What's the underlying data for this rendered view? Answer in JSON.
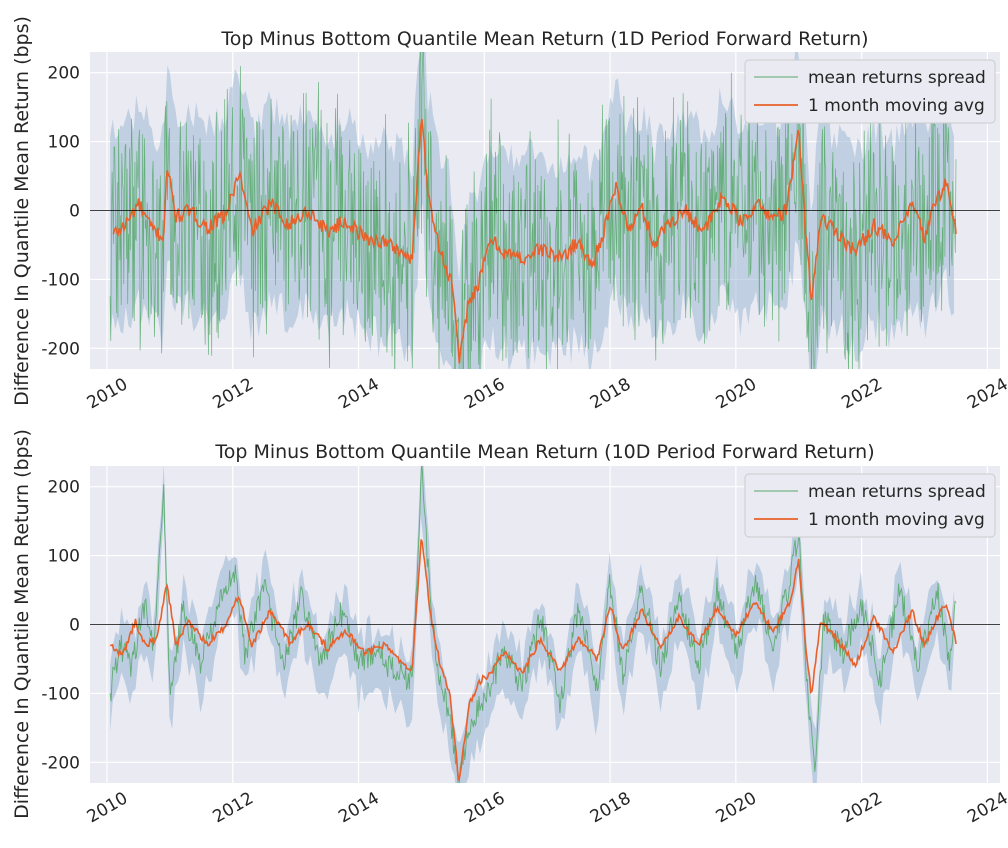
{
  "colors": {
    "plot_background": "#EAEAF2",
    "grid": "#FFFFFF",
    "spread_line": "#55A868",
    "spread_band": "#9DB9D6",
    "moving_avg": "#E8602A",
    "zero_line": "#000000"
  },
  "chart_data": [
    {
      "type": "line",
      "title": "Top Minus Bottom Quantile Mean Return (1D Period Forward Return)",
      "xlabel": "",
      "ylabel": "Difference In Quantile Mean Return (bps)",
      "x_range": [
        "2010-01",
        "2024-01"
      ],
      "x_ticks": [
        "2010",
        "2012",
        "2014",
        "2016",
        "2018",
        "2020",
        "2022",
        "2024"
      ],
      "ylim": [
        -230,
        230
      ],
      "y_ticks": [
        -200,
        -100,
        0,
        100,
        200
      ],
      "grid": true,
      "legend_position": "top-right",
      "zero_line": 0,
      "series": [
        {
          "name": "mean returns spread",
          "style": "noisy band",
          "typical_range": [
            -150,
            150
          ],
          "note_values": [
            [
              2010.1,
              0
            ],
            [
              2015.0,
              230
            ],
            [
              2015.6,
              -230
            ],
            [
              2021.0,
              150
            ]
          ]
        },
        {
          "name": "1 month moving avg",
          "points": [
            [
              2010.1,
              -35
            ],
            [
              2010.3,
              -20
            ],
            [
              2010.5,
              10
            ],
            [
              2010.7,
              -25
            ],
            [
              2010.9,
              -40
            ],
            [
              2010.95,
              65
            ],
            [
              2011.1,
              -10
            ],
            [
              2011.3,
              0
            ],
            [
              2011.6,
              -25
            ],
            [
              2011.9,
              -5
            ],
            [
              2012.1,
              55
            ],
            [
              2012.3,
              -30
            ],
            [
              2012.6,
              10
            ],
            [
              2012.9,
              -20
            ],
            [
              2013.2,
              0
            ],
            [
              2013.5,
              -30
            ],
            [
              2013.8,
              -15
            ],
            [
              2014.1,
              -40
            ],
            [
              2014.4,
              -45
            ],
            [
              2014.7,
              -60
            ],
            [
              2014.85,
              -75
            ],
            [
              2015.0,
              145
            ],
            [
              2015.1,
              30
            ],
            [
              2015.3,
              -60
            ],
            [
              2015.5,
              -110
            ],
            [
              2015.6,
              -225
            ],
            [
              2015.75,
              -130
            ],
            [
              2015.9,
              -110
            ],
            [
              2016.1,
              -40
            ],
            [
              2016.3,
              -60
            ],
            [
              2016.6,
              -70
            ],
            [
              2016.9,
              -55
            ],
            [
              2017.2,
              -70
            ],
            [
              2017.5,
              -45
            ],
            [
              2017.7,
              -80
            ],
            [
              2017.9,
              -30
            ],
            [
              2018.1,
              35
            ],
            [
              2018.3,
              -30
            ],
            [
              2018.5,
              5
            ],
            [
              2018.7,
              -50
            ],
            [
              2018.9,
              -20
            ],
            [
              2019.2,
              0
            ],
            [
              2019.5,
              -30
            ],
            [
              2019.8,
              20
            ],
            [
              2020.1,
              -20
            ],
            [
              2020.3,
              10
            ],
            [
              2020.6,
              -10
            ],
            [
              2020.8,
              0
            ],
            [
              2021.0,
              115
            ],
            [
              2021.1,
              -20
            ],
            [
              2021.2,
              -130
            ],
            [
              2021.35,
              -10
            ],
            [
              2021.6,
              -30
            ],
            [
              2021.9,
              -60
            ],
            [
              2022.2,
              -20
            ],
            [
              2022.5,
              -50
            ],
            [
              2022.8,
              10
            ],
            [
              2023.0,
              -40
            ],
            [
              2023.2,
              20
            ],
            [
              2023.35,
              40
            ],
            [
              2023.5,
              -30
            ]
          ]
        }
      ]
    },
    {
      "type": "line",
      "title": "Top Minus Bottom Quantile Mean Return (10D Period Forward Return)",
      "xlabel": "",
      "ylabel": "Difference In Quantile Mean Return (bps)",
      "x_range": [
        "2010-01",
        "2024-01"
      ],
      "x_ticks": [
        "2010",
        "2012",
        "2014",
        "2016",
        "2018",
        "2020",
        "2022",
        "2024"
      ],
      "ylim": [
        -230,
        230
      ],
      "y_ticks": [
        -200,
        -100,
        0,
        100,
        200
      ],
      "grid": true,
      "legend_position": "top-right",
      "zero_line": 0,
      "series": [
        {
          "name": "mean returns spread",
          "points": [
            [
              2010.05,
              -100
            ],
            [
              2010.2,
              -30
            ],
            [
              2010.4,
              -60
            ],
            [
              2010.6,
              30
            ],
            [
              2010.75,
              -40
            ],
            [
              2010.9,
              200
            ],
            [
              2011.0,
              -110
            ],
            [
              2011.2,
              20
            ],
            [
              2011.5,
              -60
            ],
            [
              2011.8,
              40
            ],
            [
              2012.05,
              75
            ],
            [
              2012.2,
              -50
            ],
            [
              2012.5,
              60
            ],
            [
              2012.8,
              -60
            ],
            [
              2013.1,
              40
            ],
            [
              2013.4,
              -60
            ],
            [
              2013.7,
              20
            ],
            [
              2014.0,
              -50
            ],
            [
              2014.3,
              -40
            ],
            [
              2014.6,
              -70
            ],
            [
              2014.85,
              -80
            ],
            [
              2015.0,
              225
            ],
            [
              2015.15,
              20
            ],
            [
              2015.3,
              -80
            ],
            [
              2015.45,
              -140
            ],
            [
              2015.6,
              -230
            ],
            [
              2015.75,
              -150
            ],
            [
              2016.0,
              -110
            ],
            [
              2016.3,
              -40
            ],
            [
              2016.6,
              -90
            ],
            [
              2016.9,
              10
            ],
            [
              2017.2,
              -110
            ],
            [
              2017.5,
              20
            ],
            [
              2017.8,
              -90
            ],
            [
              2018.0,
              60
            ],
            [
              2018.2,
              -70
            ],
            [
              2018.5,
              50
            ],
            [
              2018.8,
              -60
            ],
            [
              2019.1,
              40
            ],
            [
              2019.4,
              -60
            ],
            [
              2019.7,
              50
            ],
            [
              2020.0,
              -40
            ],
            [
              2020.3,
              60
            ],
            [
              2020.6,
              -30
            ],
            [
              2020.85,
              60
            ],
            [
              2021.0,
              135
            ],
            [
              2021.1,
              -40
            ],
            [
              2021.25,
              -220
            ],
            [
              2021.4,
              10
            ],
            [
              2021.7,
              -40
            ],
            [
              2022.0,
              30
            ],
            [
              2022.3,
              -80
            ],
            [
              2022.6,
              50
            ],
            [
              2022.9,
              -60
            ],
            [
              2023.2,
              50
            ],
            [
              2023.4,
              -50
            ],
            [
              2023.5,
              30
            ]
          ]
        },
        {
          "name": "1 month moving avg",
          "points": [
            [
              2010.05,
              -30
            ],
            [
              2010.25,
              -45
            ],
            [
              2010.45,
              5
            ],
            [
              2010.6,
              -30
            ],
            [
              2010.8,
              -20
            ],
            [
              2010.95,
              62
            ],
            [
              2011.1,
              -30
            ],
            [
              2011.3,
              5
            ],
            [
              2011.6,
              -30
            ],
            [
              2011.9,
              0
            ],
            [
              2012.1,
              45
            ],
            [
              2012.3,
              -30
            ],
            [
              2012.6,
              20
            ],
            [
              2012.9,
              -25
            ],
            [
              2013.2,
              0
            ],
            [
              2013.5,
              -35
            ],
            [
              2013.8,
              -10
            ],
            [
              2014.1,
              -40
            ],
            [
              2014.4,
              -30
            ],
            [
              2014.7,
              -55
            ],
            [
              2014.85,
              -65
            ],
            [
              2015.0,
              130
            ],
            [
              2015.15,
              10
            ],
            [
              2015.3,
              -60
            ],
            [
              2015.45,
              -100
            ],
            [
              2015.6,
              -230
            ],
            [
              2015.75,
              -120
            ],
            [
              2015.9,
              -85
            ],
            [
              2016.1,
              -70
            ],
            [
              2016.3,
              -40
            ],
            [
              2016.6,
              -70
            ],
            [
              2016.9,
              -20
            ],
            [
              2017.2,
              -70
            ],
            [
              2017.5,
              -20
            ],
            [
              2017.8,
              -50
            ],
            [
              2018.0,
              30
            ],
            [
              2018.2,
              -40
            ],
            [
              2018.5,
              20
            ],
            [
              2018.8,
              -30
            ],
            [
              2019.1,
              10
            ],
            [
              2019.4,
              -30
            ],
            [
              2019.7,
              25
            ],
            [
              2020.0,
              -15
            ],
            [
              2020.3,
              30
            ],
            [
              2020.6,
              -10
            ],
            [
              2020.85,
              30
            ],
            [
              2021.0,
              92
            ],
            [
              2021.1,
              -20
            ],
            [
              2021.2,
              -102
            ],
            [
              2021.35,
              5
            ],
            [
              2021.6,
              -20
            ],
            [
              2021.9,
              -60
            ],
            [
              2022.2,
              10
            ],
            [
              2022.5,
              -40
            ],
            [
              2022.8,
              20
            ],
            [
              2023.0,
              -30
            ],
            [
              2023.2,
              10
            ],
            [
              2023.35,
              30
            ],
            [
              2023.5,
              -25
            ]
          ]
        }
      ]
    }
  ]
}
